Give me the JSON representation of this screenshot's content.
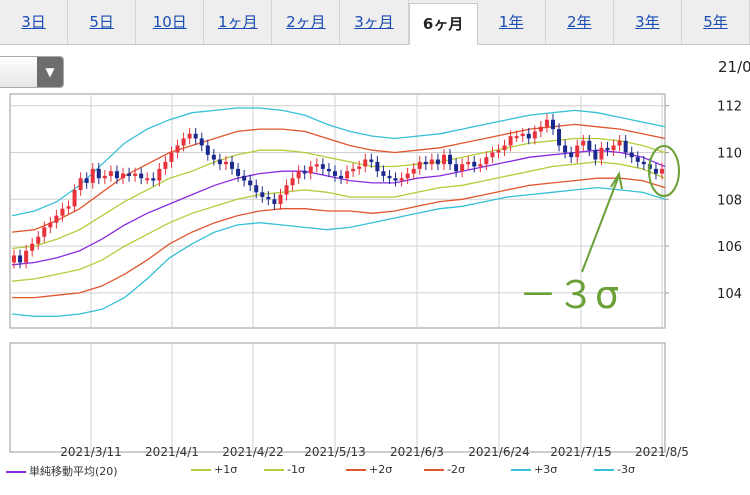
{
  "tabs": [
    "3日",
    "5日",
    "10日",
    "1ヶ月",
    "2ヶ月",
    "3ヶ月",
    "6ヶ月",
    "1年",
    "2年",
    "3年",
    "5年"
  ],
  "active_tab": "6ヶ月",
  "date_stamp": "21/0",
  "annotation": "－３σ",
  "colors": {
    "up": "#e8323c",
    "down": "#1a2a8c",
    "sma": "#8a2be2",
    "s1": "#b5cc3a",
    "s2": "#e0562d",
    "s3": "#35c0d6",
    "annotation": "#6aa035"
  },
  "chart_data": {
    "type": "line",
    "ylim": [
      102.5,
      112.5
    ],
    "yticks": [
      104,
      106,
      108,
      110,
      112
    ],
    "xlabels": [
      "2021/3/11",
      "2021/4/1",
      "2021/4/22",
      "2021/5/13",
      "2021/6/3",
      "2021/6/24",
      "2021/7/15",
      "2021/8/5"
    ],
    "candles_close": [
      105.6,
      105.3,
      105.8,
      106.1,
      106.4,
      106.8,
      107.0,
      107.3,
      107.6,
      107.7,
      108.4,
      108.9,
      108.7,
      109.3,
      108.9,
      109.0,
      109.2,
      108.9,
      109.1,
      109.0,
      109.1,
      108.9,
      108.9,
      108.8,
      109.3,
      109.6,
      110.0,
      110.3,
      110.6,
      110.8,
      110.6,
      110.3,
      109.9,
      109.7,
      109.5,
      109.6,
      109.3,
      109.0,
      108.8,
      108.6,
      108.3,
      108.1,
      108.0,
      107.8,
      108.2,
      108.6,
      108.9,
      109.2,
      109.1,
      109.4,
      109.5,
      109.3,
      109.2,
      109.0,
      108.9,
      109.2,
      109.3,
      109.4,
      109.7,
      109.6,
      109.2,
      109.0,
      108.9,
      108.8,
      108.9,
      109.1,
      109.3,
      109.6,
      109.5,
      109.7,
      109.5,
      109.9,
      109.5,
      109.2,
      109.5,
      109.6,
      109.4,
      109.5,
      109.8,
      110.0,
      110.1,
      110.3,
      110.7,
      110.7,
      110.8,
      110.6,
      110.9,
      111.1,
      111.4,
      111.0,
      110.3,
      110.0,
      109.8,
      110.3,
      110.5,
      110.1,
      109.7,
      110.2,
      110.1,
      110.3,
      110.5,
      110.0,
      109.8,
      109.6,
      109.5,
      109.3,
      109.1,
      109.3
    ],
    "series": [
      {
        "name": "単純移動平均(20)",
        "values": [
          105.2,
          105.3,
          105.5,
          105.8,
          106.3,
          106.9,
          107.4,
          107.8,
          108.2,
          108.6,
          108.9,
          109.1,
          109.2,
          109.2,
          109.0,
          108.8,
          108.7,
          108.7,
          108.9,
          109.0,
          109.2,
          109.4,
          109.6,
          109.8,
          109.9,
          110.0,
          110.1,
          110.0,
          109.8,
          109.4
        ]
      },
      {
        "name": "+1σ",
        "values": [
          105.9,
          106.0,
          106.3,
          106.7,
          107.3,
          107.9,
          108.4,
          108.9,
          109.2,
          109.6,
          109.9,
          110.1,
          110.1,
          110.0,
          109.8,
          109.6,
          109.4,
          109.4,
          109.5,
          109.6,
          109.8,
          110.0,
          110.2,
          110.4,
          110.5,
          110.6,
          110.6,
          110.5,
          110.3,
          110.0
        ]
      },
      {
        "name": "-1σ",
        "values": [
          104.5,
          104.6,
          104.8,
          105.0,
          105.4,
          106.0,
          106.5,
          107.0,
          107.4,
          107.7,
          108.0,
          108.2,
          108.3,
          108.4,
          108.3,
          108.1,
          108.1,
          108.1,
          108.3,
          108.5,
          108.6,
          108.8,
          109.0,
          109.2,
          109.4,
          109.5,
          109.6,
          109.5,
          109.3,
          108.9
        ]
      },
      {
        "name": "+2σ",
        "values": [
          106.6,
          106.7,
          107.1,
          107.6,
          108.3,
          109.0,
          109.5,
          110.0,
          110.3,
          110.6,
          110.9,
          111.0,
          111.0,
          110.9,
          110.6,
          110.3,
          110.1,
          110.0,
          110.1,
          110.2,
          110.4,
          110.6,
          110.8,
          111.0,
          111.1,
          111.2,
          111.1,
          111.0,
          110.8,
          110.6
        ]
      },
      {
        "name": "-2σ",
        "values": [
          103.8,
          103.8,
          103.9,
          104.0,
          104.3,
          104.8,
          105.4,
          106.1,
          106.6,
          107.0,
          107.3,
          107.5,
          107.6,
          107.6,
          107.5,
          107.5,
          107.4,
          107.5,
          107.7,
          107.9,
          108.0,
          108.2,
          108.4,
          108.6,
          108.7,
          108.8,
          108.9,
          108.9,
          108.8,
          108.5
        ]
      },
      {
        "name": "+3σ",
        "values": [
          107.3,
          107.5,
          107.9,
          108.6,
          109.5,
          110.4,
          111.0,
          111.4,
          111.7,
          111.8,
          111.9,
          111.9,
          111.8,
          111.6,
          111.2,
          110.9,
          110.7,
          110.6,
          110.7,
          110.8,
          111.0,
          111.2,
          111.4,
          111.6,
          111.7,
          111.8,
          111.7,
          111.5,
          111.3,
          111.1
        ]
      },
      {
        "name": "-3σ",
        "values": [
          103.1,
          103.0,
          103.0,
          103.1,
          103.3,
          103.8,
          104.6,
          105.5,
          106.1,
          106.6,
          106.9,
          107.0,
          106.9,
          106.8,
          106.7,
          106.8,
          107.0,
          107.2,
          107.4,
          107.6,
          107.7,
          107.9,
          108.1,
          108.2,
          108.3,
          108.4,
          108.5,
          108.4,
          108.3,
          108.0
        ]
      }
    ]
  }
}
